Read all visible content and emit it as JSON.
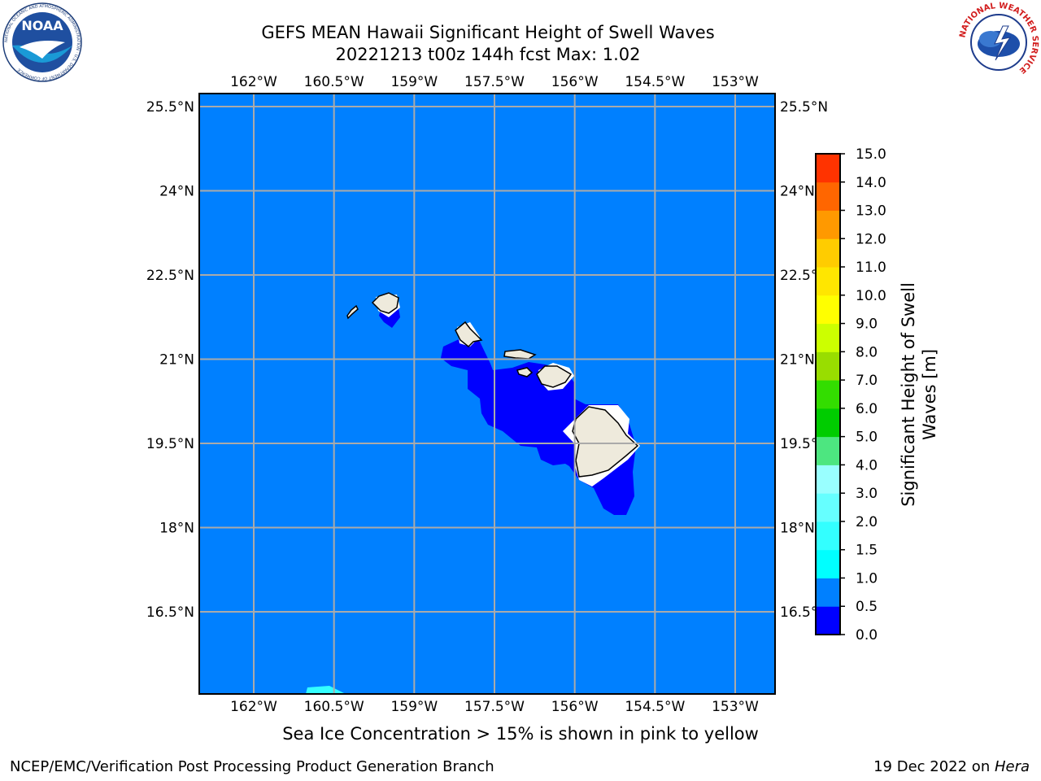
{
  "title": {
    "line1": "GEFS MEAN Hawaii Significant Height of Swell Waves",
    "line2": "20221213 t00z 144h fcst   Max: 1.02"
  },
  "map": {
    "lon_labels": [
      "162°W",
      "160.5°W",
      "159°W",
      "157.5°W",
      "156°W",
      "154.5°W",
      "153°W"
    ],
    "lat_labels": [
      "25.5°N",
      "24°N",
      "22.5°N",
      "21°N",
      "19.5°N",
      "18°N",
      "16.5°N"
    ],
    "lon_values": [
      -162,
      -160.5,
      -159,
      -157.5,
      -156,
      -154.5,
      -153
    ],
    "lat_values": [
      25.5,
      24,
      22.5,
      21,
      19.5,
      18,
      16.5
    ],
    "ocean_color": "#0080ff",
    "near_island_color": "#0000ff",
    "land_color": "#eeeadc",
    "gridline_color": "#aaaaaa",
    "cyan_patch_color": "#33ffff"
  },
  "colorbar": {
    "title_line1": "Significant Height of Swell",
    "title_line2": "Waves [m]",
    "ticks": [
      "0.0",
      "0.5",
      "1.0",
      "1.5",
      "2.0",
      "3.0",
      "4.0",
      "5.0",
      "6.0",
      "7.0",
      "8.0",
      "9.0",
      "10.0",
      "11.0",
      "12.0",
      "13.0",
      "14.0",
      "15.0"
    ],
    "colors": [
      "#0000ff",
      "#0080ff",
      "#00ffff",
      "#33ffff",
      "#66ffff",
      "#99ffff",
      "#4de680",
      "#00cc00",
      "#33dd00",
      "#99dd00",
      "#ccff00",
      "#ffff00",
      "#ffe600",
      "#ffcc00",
      "#ff9900",
      "#ff6600",
      "#ff3300",
      "#ff0000"
    ]
  },
  "logos": {
    "noaa_text": "NOAA",
    "noaa_ring_text": "NATIONAL OCEANIC AND ATMOSPHERIC ADMINISTRATION · U.S. DEPARTMENT OF COMMERCE",
    "nws_ring_text": "NATIONAL WEATHER SERVICE"
  },
  "note": "Sea Ice Concentration > 15% is shown in pink to yellow",
  "footer": {
    "left": "NCEP/EMC/Verification Post Processing Product Generation Branch",
    "right_prefix": "19 Dec 2022 on ",
    "right_host": "Hera"
  }
}
